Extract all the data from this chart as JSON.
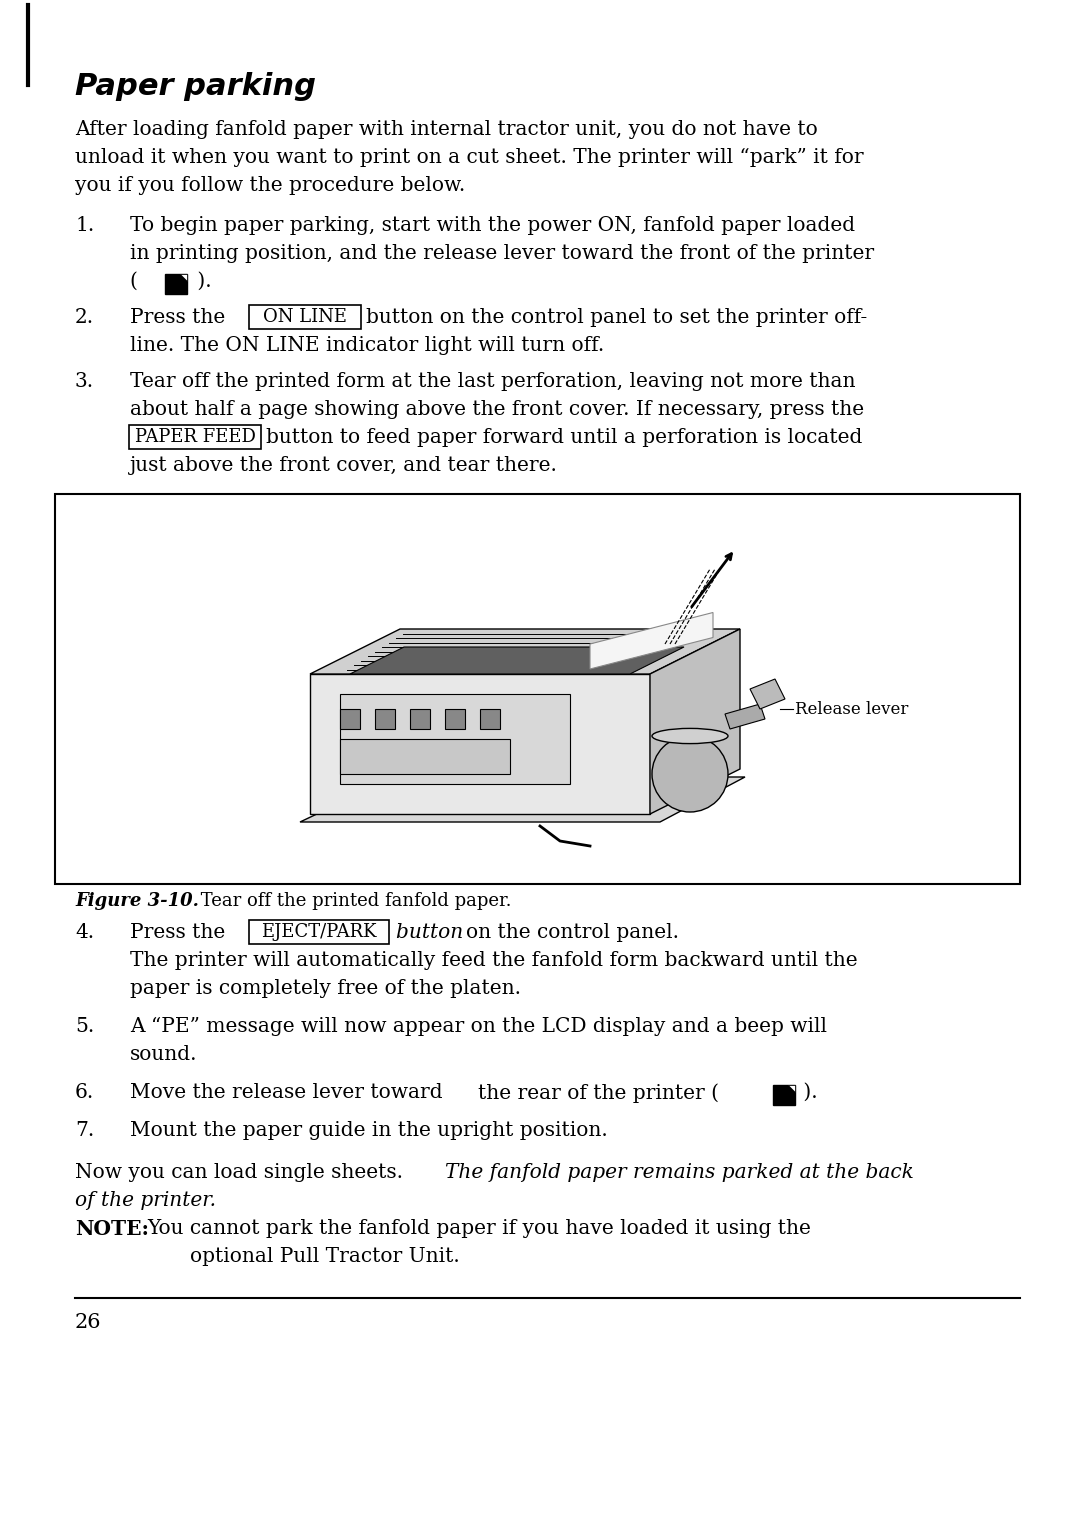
{
  "bg_color": "#ffffff",
  "page_number": "26",
  "title": "Paper parking",
  "intro_line1": "After loading fanfold paper with internal tractor unit, you do not have to",
  "intro_line2": "unload it when you want to print on a cut sheet. The printer will “park” it for",
  "intro_line3": "you if you follow the procedure below.",
  "s1l1": "To begin paper parking, start with the power ON, fanfold paper loaded",
  "s1l2": "in printing position, and the release lever toward the front of the printer",
  "s1l3": "( ",
  "s2l1a": "Press the ",
  "s2l1b": "ON LINE",
  "s2l1c": " button on the control panel to set the printer off-",
  "s2l2": "line. The ᴏɴ ʟɪɴᴇ indicator light will turn off.",
  "s2l2_plain": "line. The ON LINE indicator light will turn off.",
  "s3l1": "Tear off the printed form at the last perforation, leaving not more than",
  "s3l2": "about half a page showing above the front cover. If necessary, press the",
  "s3l3a": "PAPER FEED",
  "s3l3b": " button to feed paper forward until a perforation is located",
  "s3l4": "just above the front cover, and tear there.",
  "fig_caption_bold": "Figure 3-10.",
  "fig_caption_rest": " Tear off the printed fanfold paper.",
  "s4l1a": "Press the ",
  "s4l1b": "EJECT/PARK",
  "s4l1c": " button ",
  "s4l1d": "on the control panel.",
  "s4l2": "The printer will automatically feed the fanfold form backward until the",
  "s4l3": "paper is completely free of the platen.",
  "s5l1": "A “PE” message will now appear on the LCD display and a beep will",
  "s5l2": "sound.",
  "s6l1a": "Move the release lever toward ",
  "s6l1b": "the rear of the printer ( ",
  "s6l1c": " ).",
  "s6_full": "Move the release lever toward the rear of the printer ( ▮ ).",
  "s7l1": "Mount the paper guide in the upright position.",
  "close1": "Now you can load single sheets. ",
  "close1b": "The fanfold paper remains parked at the back",
  "close2": "of the printer.",
  "note_label": "NOTE:",
  "note_body": "You cannot park the fanfold paper if you have loaded it using the",
  "note_cont": "optional Pull Tractor Unit."
}
